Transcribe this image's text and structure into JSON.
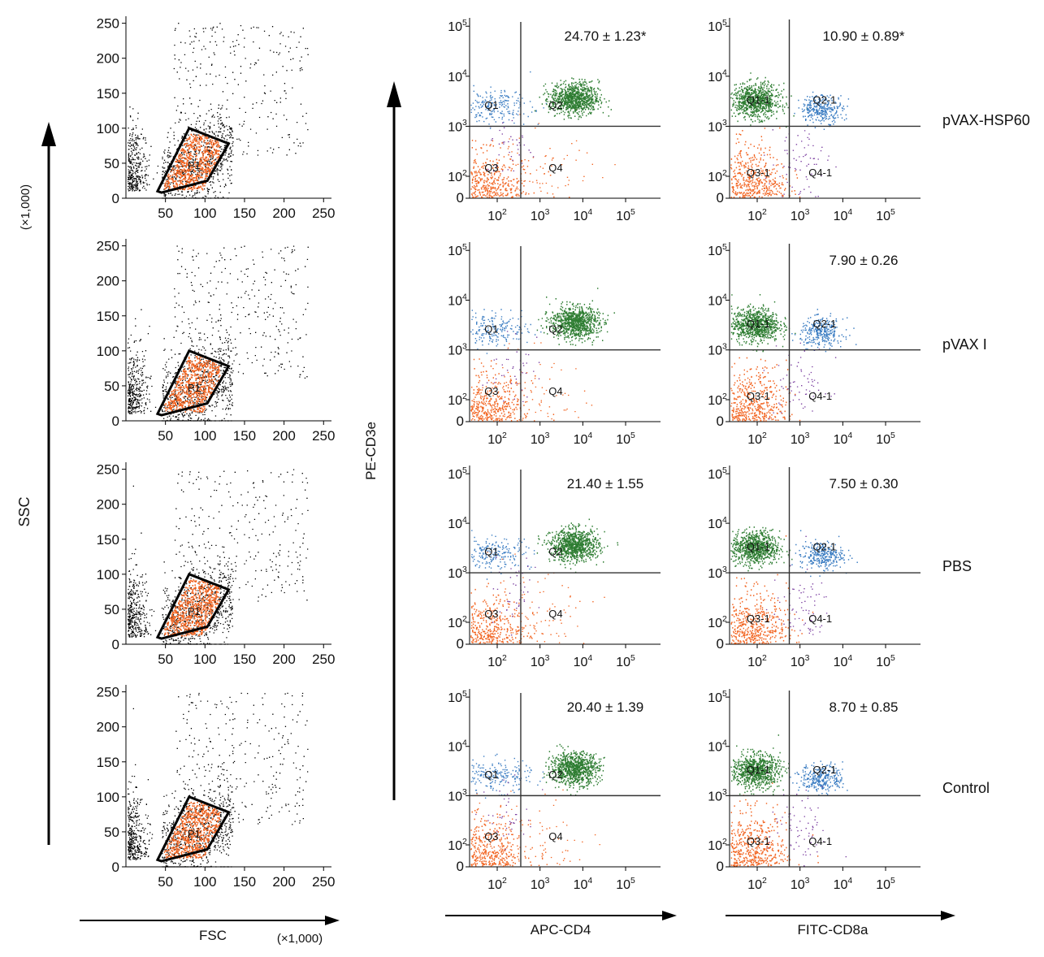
{
  "figure": {
    "axes": {
      "ssc": "SSC",
      "ssc_unit": "(×1,000)",
      "fsc": "FSC",
      "fsc_unit": "(×1,000)",
      "pe": "PE-CD3e",
      "apc": "APC-CD4",
      "fitc": "FITC-CD8a"
    },
    "groups": [
      "pVAX-HSP60",
      "pVAX I",
      "PBS",
      "Control"
    ],
    "gate_label": "P1",
    "cd4_quadrants": [
      "Q1",
      "Q2",
      "Q3",
      "Q4"
    ],
    "cd8_quadrants": [
      "Q1-1",
      "Q2-1",
      "Q3-1",
      "Q4-1"
    ]
  },
  "chart_data": [
    {
      "type": "scatter",
      "panel": "FSC vs SSC",
      "xlabel": "FSC",
      "ylabel": "SSC",
      "x_ticks": [
        "50",
        "100",
        "150",
        "200",
        "250"
      ],
      "y_ticks": [
        "0",
        "50",
        "100",
        "150",
        "200",
        "250"
      ],
      "xlim": [
        0,
        260
      ],
      "ylim": [
        0,
        260
      ],
      "gate_polygon": [
        [
          40,
          10
        ],
        [
          80,
          100
        ],
        [
          130,
          78
        ],
        [
          103,
          25
        ],
        [
          45,
          8
        ]
      ],
      "colors": {
        "events": "#000000",
        "gated": "#f26522",
        "gate": "#000000"
      }
    },
    {
      "type": "scatter",
      "panel": "APC-CD4 vs PE-CD3e",
      "xlabel": "APC-CD4",
      "ylabel": "PE-CD3e",
      "scale": "log",
      "x_ticks": [
        "10^2",
        "10^3",
        "10^4",
        "10^5"
      ],
      "y_ticks": [
        "0",
        "10^2",
        "10^3",
        "10^4",
        "10^5"
      ],
      "series": [
        {
          "group": "pVAX-HSP60",
          "label": "24.70 ± 1.23*",
          "value": 24.7,
          "sd": 1.23,
          "significant": true
        },
        {
          "group": "pVAX I",
          "label": "",
          "value": null
        },
        {
          "group": "PBS",
          "label": "21.40 ± 1.55",
          "value": 21.4,
          "sd": 1.55
        },
        {
          "group": "Control",
          "label": "20.40 ± 1.39",
          "value": 20.4,
          "sd": 1.39
        }
      ],
      "colors": {
        "Q1": "#3a7cc2",
        "Q2": "#2e7d32",
        "Q3": "#f26522",
        "Q4": "#f26522",
        "purple": "#7b3fa0"
      }
    },
    {
      "type": "scatter",
      "panel": "FITC-CD8a vs PE-CD3e",
      "xlabel": "FITC-CD8a",
      "ylabel": "PE-CD3e",
      "scale": "log",
      "x_ticks": [
        "10^2",
        "10^3",
        "10^4",
        "10^5"
      ],
      "y_ticks": [
        "0",
        "10^2",
        "10^3",
        "10^4",
        "10^5"
      ],
      "series": [
        {
          "group": "pVAX-HSP60",
          "label": "10.90 ± 0.89*",
          "value": 10.9,
          "sd": 0.89,
          "significant": true
        },
        {
          "group": "pVAX I",
          "label": "7.90 ± 0.26",
          "value": 7.9,
          "sd": 0.26
        },
        {
          "group": "PBS",
          "label": "7.50 ± 0.30",
          "value": 7.5,
          "sd": 0.3
        },
        {
          "group": "Control",
          "label": "8.70 ± 0.85",
          "value": 8.7,
          "sd": 0.85
        }
      ],
      "colors": {
        "Q1-1": "#2e7d32",
        "Q2-1": "#3a7cc2",
        "Q3-1": "#f26522",
        "Q4-1": "#7b3fa0"
      }
    }
  ]
}
